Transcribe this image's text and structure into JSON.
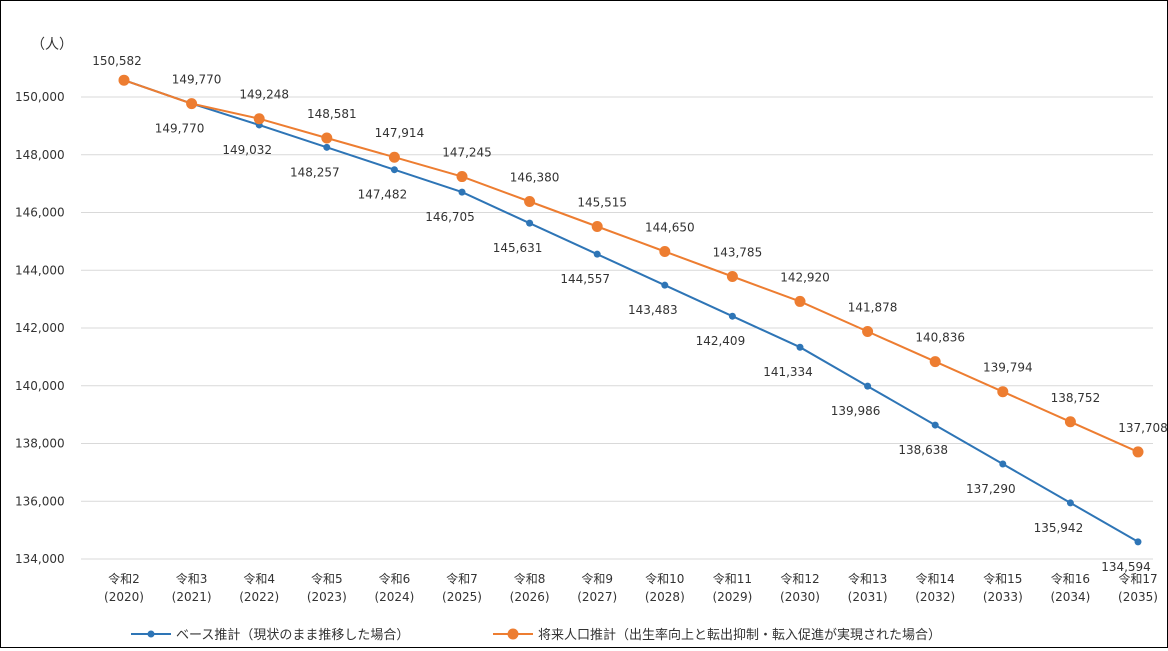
{
  "chart_data": {
    "type": "line",
    "unit_label": "（人）",
    "categories": [
      [
        "令和2",
        "(2020)"
      ],
      [
        "令和3",
        "(2021)"
      ],
      [
        "令和4",
        "(2022)"
      ],
      [
        "令和5",
        "(2023)"
      ],
      [
        "令和6",
        "(2024)"
      ],
      [
        "令和7",
        "(2025)"
      ],
      [
        "令和8",
        "(2026)"
      ],
      [
        "令和9",
        "(2027)"
      ],
      [
        "令和10",
        "(2028)"
      ],
      [
        "令和11",
        "(2029)"
      ],
      [
        "令和12",
        "(2030)"
      ],
      [
        "令和13",
        "(2031)"
      ],
      [
        "令和14",
        "(2032)"
      ],
      [
        "令和15",
        "(2033)"
      ],
      [
        "令和16",
        "(2034)"
      ],
      [
        "令和17",
        "(2035)"
      ]
    ],
    "ylim": [
      134000,
      150000
    ],
    "yticks": [
      134000,
      136000,
      138000,
      140000,
      142000,
      144000,
      146000,
      148000,
      150000
    ],
    "grid": true,
    "legend_position": "bottom",
    "series": [
      {
        "name": "ベース推計（現状のまま推移した場合）",
        "color": "#2e75b6",
        "marker": "small",
        "label_position": "below",
        "values": [
          150582,
          149770,
          149032,
          148257,
          147482,
          146705,
          145631,
          144557,
          143483,
          142409,
          141334,
          139986,
          138638,
          137290,
          135942,
          134594
        ]
      },
      {
        "name": "将来人口推計（出生率向上と転出抑制・転入促進が実現された場合）",
        "color": "#ed7d31",
        "marker": "large",
        "label_position": "above",
        "values": [
          150582,
          149770,
          149248,
          148581,
          147914,
          147245,
          146380,
          145515,
          144650,
          143785,
          142920,
          141878,
          140836,
          139794,
          138752,
          137708
        ]
      }
    ]
  }
}
